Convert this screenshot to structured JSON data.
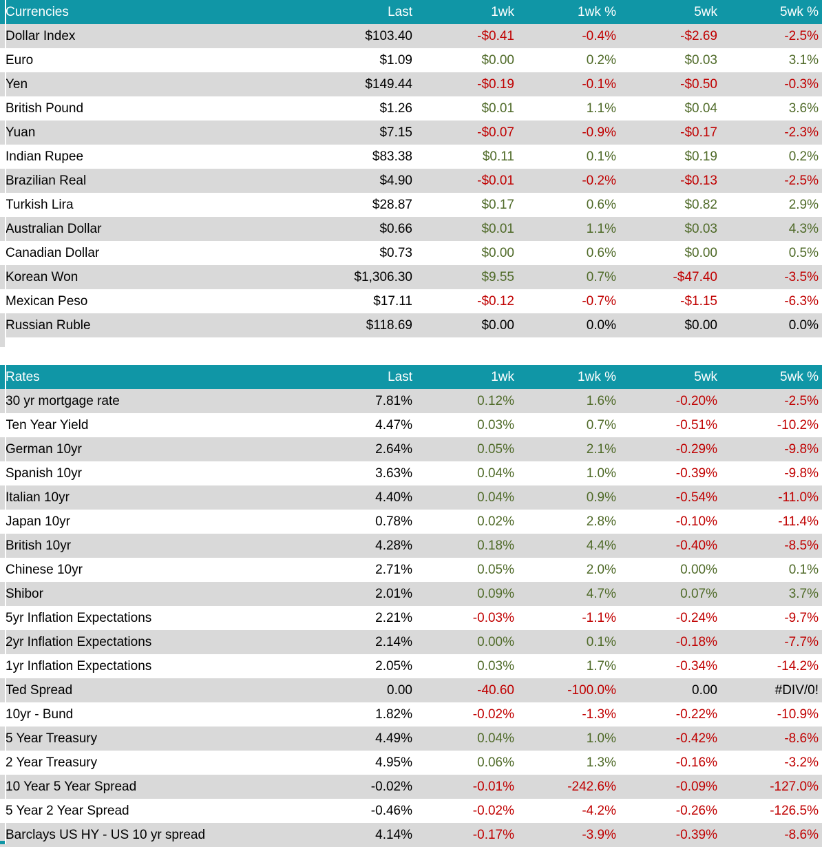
{
  "colors": {
    "header_bg": "#1096A6",
    "header_text": "#FFFFFF",
    "alt_row_bg": "#D9D9D9",
    "positive_text": "#4F6A28",
    "negative_text": "#C00000",
    "neutral_text": "#000000"
  },
  "tables": [
    {
      "title": "Currencies",
      "columns": [
        "Last",
        "1wk",
        "1wk %",
        "5wk",
        "5wk %"
      ],
      "rows": [
        {
          "label": "Dollar Index",
          "cells": [
            {
              "t": "$103.40",
              "c": "k"
            },
            {
              "t": "-$0.41",
              "c": "n"
            },
            {
              "t": "-0.4%",
              "c": "n"
            },
            {
              "t": "-$2.69",
              "c": "n"
            },
            {
              "t": "-2.5%",
              "c": "n"
            }
          ]
        },
        {
          "label": "Euro",
          "cells": [
            {
              "t": "$1.09",
              "c": "k"
            },
            {
              "t": "$0.00",
              "c": "p"
            },
            {
              "t": "0.2%",
              "c": "p"
            },
            {
              "t": "$0.03",
              "c": "p"
            },
            {
              "t": "3.1%",
              "c": "p"
            }
          ]
        },
        {
          "label": "Yen",
          "cells": [
            {
              "t": "$149.44",
              "c": "k"
            },
            {
              "t": "-$0.19",
              "c": "n"
            },
            {
              "t": "-0.1%",
              "c": "n"
            },
            {
              "t": "-$0.50",
              "c": "n"
            },
            {
              "t": "-0.3%",
              "c": "n"
            }
          ]
        },
        {
          "label": "British Pound",
          "cells": [
            {
              "t": "$1.26",
              "c": "k"
            },
            {
              "t": "$0.01",
              "c": "p"
            },
            {
              "t": "1.1%",
              "c": "p"
            },
            {
              "t": "$0.04",
              "c": "p"
            },
            {
              "t": "3.6%",
              "c": "p"
            }
          ]
        },
        {
          "label": "Yuan",
          "cells": [
            {
              "t": "$7.15",
              "c": "k"
            },
            {
              "t": "-$0.07",
              "c": "n"
            },
            {
              "t": "-0.9%",
              "c": "n"
            },
            {
              "t": "-$0.17",
              "c": "n"
            },
            {
              "t": "-2.3%",
              "c": "n"
            }
          ]
        },
        {
          "label": "Indian Rupee",
          "cells": [
            {
              "t": "$83.38",
              "c": "k"
            },
            {
              "t": "$0.11",
              "c": "p"
            },
            {
              "t": "0.1%",
              "c": "p"
            },
            {
              "t": "$0.19",
              "c": "p"
            },
            {
              "t": "0.2%",
              "c": "p"
            }
          ]
        },
        {
          "label": "Brazilian Real",
          "cells": [
            {
              "t": "$4.90",
              "c": "k"
            },
            {
              "t": "-$0.01",
              "c": "n"
            },
            {
              "t": "-0.2%",
              "c": "n"
            },
            {
              "t": "-$0.13",
              "c": "n"
            },
            {
              "t": "-2.5%",
              "c": "n"
            }
          ]
        },
        {
          "label": "Turkish Lira",
          "cells": [
            {
              "t": "$28.87",
              "c": "k"
            },
            {
              "t": "$0.17",
              "c": "p"
            },
            {
              "t": "0.6%",
              "c": "p"
            },
            {
              "t": "$0.82",
              "c": "p"
            },
            {
              "t": "2.9%",
              "c": "p"
            }
          ]
        },
        {
          "label": "Australian Dollar",
          "cells": [
            {
              "t": "$0.66",
              "c": "k"
            },
            {
              "t": "$0.01",
              "c": "p"
            },
            {
              "t": "1.1%",
              "c": "p"
            },
            {
              "t": "$0.03",
              "c": "p"
            },
            {
              "t": "4.3%",
              "c": "p"
            }
          ]
        },
        {
          "label": "Canadian Dollar",
          "cells": [
            {
              "t": "$0.73",
              "c": "k"
            },
            {
              "t": "$0.00",
              "c": "p"
            },
            {
              "t": "0.6%",
              "c": "p"
            },
            {
              "t": "$0.00",
              "c": "p"
            },
            {
              "t": "0.5%",
              "c": "p"
            }
          ]
        },
        {
          "label": "Korean Won",
          "cells": [
            {
              "t": "$1,306.30",
              "c": "k"
            },
            {
              "t": "$9.55",
              "c": "p"
            },
            {
              "t": "0.7%",
              "c": "p"
            },
            {
              "t": "-$47.40",
              "c": "n"
            },
            {
              "t": "-3.5%",
              "c": "n"
            }
          ]
        },
        {
          "label": "Mexican Peso",
          "cells": [
            {
              "t": "$17.11",
              "c": "k"
            },
            {
              "t": "-$0.12",
              "c": "n"
            },
            {
              "t": "-0.7%",
              "c": "n"
            },
            {
              "t": "-$1.15",
              "c": "n"
            },
            {
              "t": "-6.3%",
              "c": "n"
            }
          ]
        },
        {
          "label": "Russian Ruble",
          "cells": [
            {
              "t": "$118.69",
              "c": "k"
            },
            {
              "t": "$0.00",
              "c": "k"
            },
            {
              "t": "0.0%",
              "c": "k"
            },
            {
              "t": "$0.00",
              "c": "k"
            },
            {
              "t": "0.0%",
              "c": "k"
            }
          ]
        }
      ]
    },
    {
      "title": "Rates",
      "columns": [
        "Last",
        "1wk",
        "1wk %",
        "5wk",
        "5wk %"
      ],
      "rows": [
        {
          "label": "30 yr mortgage rate",
          "cells": [
            {
              "t": "7.81%",
              "c": "k"
            },
            {
              "t": "0.12%",
              "c": "p"
            },
            {
              "t": "1.6%",
              "c": "p"
            },
            {
              "t": "-0.20%",
              "c": "n"
            },
            {
              "t": "-2.5%",
              "c": "n"
            }
          ]
        },
        {
          "label": "Ten Year Yield",
          "cells": [
            {
              "t": "4.47%",
              "c": "k"
            },
            {
              "t": "0.03%",
              "c": "p"
            },
            {
              "t": "0.7%",
              "c": "p"
            },
            {
              "t": "-0.51%",
              "c": "n"
            },
            {
              "t": "-10.2%",
              "c": "n"
            }
          ]
        },
        {
          "label": "German 10yr",
          "cells": [
            {
              "t": "2.64%",
              "c": "k"
            },
            {
              "t": "0.05%",
              "c": "p"
            },
            {
              "t": "2.1%",
              "c": "p"
            },
            {
              "t": "-0.29%",
              "c": "n"
            },
            {
              "t": "-9.8%",
              "c": "n"
            }
          ]
        },
        {
          "label": "Spanish 10yr",
          "cells": [
            {
              "t": "3.63%",
              "c": "k"
            },
            {
              "t": "0.04%",
              "c": "p"
            },
            {
              "t": "1.0%",
              "c": "p"
            },
            {
              "t": "-0.39%",
              "c": "n"
            },
            {
              "t": "-9.8%",
              "c": "n"
            }
          ]
        },
        {
          "label": "Italian 10yr",
          "cells": [
            {
              "t": "4.40%",
              "c": "k"
            },
            {
              "t": "0.04%",
              "c": "p"
            },
            {
              "t": "0.9%",
              "c": "p"
            },
            {
              "t": "-0.54%",
              "c": "n"
            },
            {
              "t": "-11.0%",
              "c": "n"
            }
          ]
        },
        {
          "label": "Japan 10yr",
          "cells": [
            {
              "t": "0.78%",
              "c": "k"
            },
            {
              "t": "0.02%",
              "c": "p"
            },
            {
              "t": "2.8%",
              "c": "p"
            },
            {
              "t": "-0.10%",
              "c": "n"
            },
            {
              "t": "-11.4%",
              "c": "n"
            }
          ]
        },
        {
          "label": "British 10yr",
          "cells": [
            {
              "t": "4.28%",
              "c": "k"
            },
            {
              "t": "0.18%",
              "c": "p"
            },
            {
              "t": "4.4%",
              "c": "p"
            },
            {
              "t": "-0.40%",
              "c": "n"
            },
            {
              "t": "-8.5%",
              "c": "n"
            }
          ]
        },
        {
          "label": "Chinese 10yr",
          "cells": [
            {
              "t": "2.71%",
              "c": "k"
            },
            {
              "t": "0.05%",
              "c": "p"
            },
            {
              "t": "2.0%",
              "c": "p"
            },
            {
              "t": "0.00%",
              "c": "p"
            },
            {
              "t": "0.1%",
              "c": "p"
            }
          ]
        },
        {
          "label": "Shibor",
          "cells": [
            {
              "t": "2.01%",
              "c": "k"
            },
            {
              "t": "0.09%",
              "c": "p"
            },
            {
              "t": "4.7%",
              "c": "p"
            },
            {
              "t": "0.07%",
              "c": "p"
            },
            {
              "t": "3.7%",
              "c": "p"
            }
          ]
        },
        {
          "label": "5yr Inflation Expectations",
          "cells": [
            {
              "t": "2.21%",
              "c": "k"
            },
            {
              "t": "-0.03%",
              "c": "n"
            },
            {
              "t": "-1.1%",
              "c": "n"
            },
            {
              "t": "-0.24%",
              "c": "n"
            },
            {
              "t": "-9.7%",
              "c": "n"
            }
          ]
        },
        {
          "label": "2yr Inflation Expectations",
          "cells": [
            {
              "t": "2.14%",
              "c": "k"
            },
            {
              "t": "0.00%",
              "c": "p"
            },
            {
              "t": "0.1%",
              "c": "p"
            },
            {
              "t": "-0.18%",
              "c": "n"
            },
            {
              "t": "-7.7%",
              "c": "n"
            }
          ]
        },
        {
          "label": "1yr Inflation Expectations",
          "cells": [
            {
              "t": "2.05%",
              "c": "k"
            },
            {
              "t": "0.03%",
              "c": "p"
            },
            {
              "t": "1.7%",
              "c": "p"
            },
            {
              "t": "-0.34%",
              "c": "n"
            },
            {
              "t": "-14.2%",
              "c": "n"
            }
          ]
        },
        {
          "label": "Ted Spread",
          "cells": [
            {
              "t": "0.00",
              "c": "k"
            },
            {
              "t": "-40.60",
              "c": "n"
            },
            {
              "t": "-100.0%",
              "c": "n"
            },
            {
              "t": "0.00",
              "c": "k"
            },
            {
              "t": "#DIV/0!",
              "c": "k"
            }
          ]
        },
        {
          "label": "10yr - Bund",
          "cells": [
            {
              "t": "1.82%",
              "c": "k"
            },
            {
              "t": "-0.02%",
              "c": "n"
            },
            {
              "t": "-1.3%",
              "c": "n"
            },
            {
              "t": "-0.22%",
              "c": "n"
            },
            {
              "t": "-10.9%",
              "c": "n"
            }
          ]
        },
        {
          "label": "5 Year Treasury",
          "cells": [
            {
              "t": "4.49%",
              "c": "k"
            },
            {
              "t": "0.04%",
              "c": "p"
            },
            {
              "t": "1.0%",
              "c": "p"
            },
            {
              "t": "-0.42%",
              "c": "n"
            },
            {
              "t": "-8.6%",
              "c": "n"
            }
          ]
        },
        {
          "label": "2 Year Treasury",
          "cells": [
            {
              "t": "4.95%",
              "c": "k"
            },
            {
              "t": "0.06%",
              "c": "p"
            },
            {
              "t": "1.3%",
              "c": "p"
            },
            {
              "t": "-0.16%",
              "c": "n"
            },
            {
              "t": "-3.2%",
              "c": "n"
            }
          ]
        },
        {
          "label": "10 Year 5 Year Spread",
          "cells": [
            {
              "t": "-0.02%",
              "c": "k"
            },
            {
              "t": "-0.01%",
              "c": "n"
            },
            {
              "t": "-242.6%",
              "c": "n"
            },
            {
              "t": "-0.09%",
              "c": "n"
            },
            {
              "t": "-127.0%",
              "c": "n"
            }
          ]
        },
        {
          "label": "5 Year 2 Year Spread",
          "cells": [
            {
              "t": "-0.46%",
              "c": "k"
            },
            {
              "t": "-0.02%",
              "c": "n"
            },
            {
              "t": "-4.2%",
              "c": "n"
            },
            {
              "t": "-0.26%",
              "c": "n"
            },
            {
              "t": "-126.5%",
              "c": "n"
            }
          ]
        },
        {
          "label": "Barclays US HY - US 10 yr spread",
          "cells": [
            {
              "t": "4.14%",
              "c": "k"
            },
            {
              "t": "-0.17%",
              "c": "n"
            },
            {
              "t": "-3.9%",
              "c": "n"
            },
            {
              "t": "-0.39%",
              "c": "n"
            },
            {
              "t": "-8.6%",
              "c": "n"
            }
          ]
        }
      ]
    }
  ]
}
